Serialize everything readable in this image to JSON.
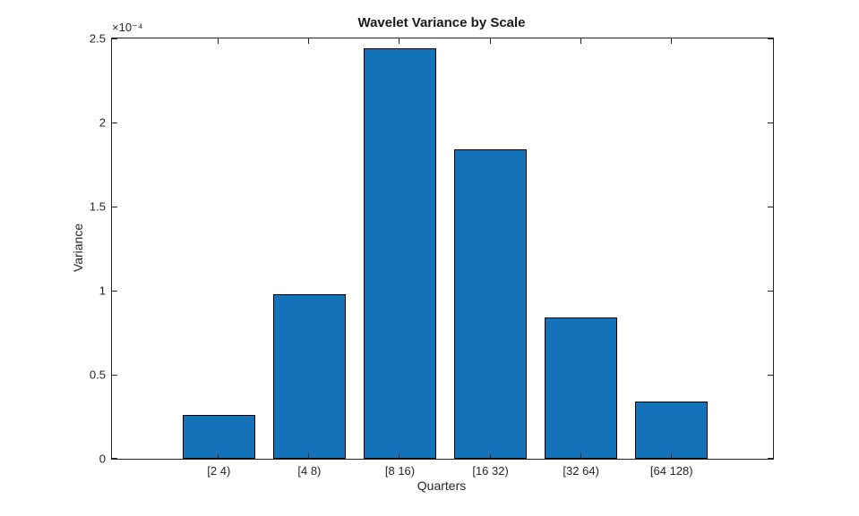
{
  "chart_data": {
    "type": "bar",
    "title": "Wavelet Variance by Scale",
    "xlabel": "Quarters",
    "ylabel": "Variance",
    "y_multiplier_label": "×10⁻⁴",
    "categories": [
      "[2 4)",
      "[4 8)",
      "[8 16)",
      "[16 32)",
      "[32 64)",
      "[64 128)"
    ],
    "x": [
      1,
      2,
      3,
      4,
      5,
      6
    ],
    "values": [
      0.26,
      0.98,
      2.44,
      1.84,
      0.84,
      0.34
    ],
    "value_units": "1e-4",
    "bar_width_units": 0.8,
    "xlim": [
      -0.18,
      7.12
    ],
    "ylim": [
      0,
      2.5
    ],
    "y_ticks": [
      0,
      0.5,
      1,
      1.5,
      2,
      2.5
    ],
    "y_tick_labels": [
      "0",
      "0.5",
      "1",
      "1.5",
      "2",
      "2.5"
    ],
    "grid": false,
    "legend": "none",
    "box": true,
    "tick_direction": "in",
    "colors": {
      "bar_fill": "#1472B8",
      "bar_edge": "#000000",
      "axis": "#262626",
      "text": "#262626",
      "title": "#1a1a1a",
      "background": "#ffffff"
    }
  }
}
